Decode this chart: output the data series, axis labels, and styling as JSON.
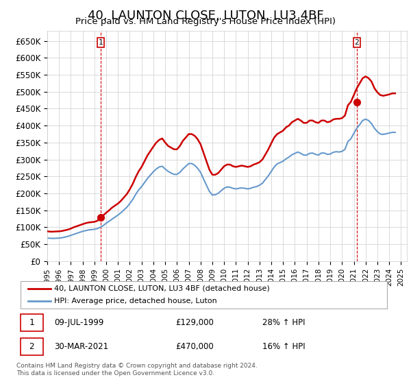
{
  "title": "40, LAUNTON CLOSE, LUTON, LU3 4BF",
  "subtitle": "Price paid vs. HM Land Registry's House Price Index (HPI)",
  "title_fontsize": 13,
  "subtitle_fontsize": 11,
  "ylabel_ticks": [
    "£0",
    "£50K",
    "£100K",
    "£150K",
    "£200K",
    "£250K",
    "£300K",
    "£350K",
    "£400K",
    "£450K",
    "£500K",
    "£550K",
    "£600K",
    "£650K"
  ],
  "ytick_values": [
    0,
    50000,
    100000,
    150000,
    200000,
    250000,
    300000,
    350000,
    400000,
    450000,
    500000,
    550000,
    600000,
    650000
  ],
  "ylim": [
    0,
    680000
  ],
  "xlim_start": 1995.0,
  "xlim_end": 2025.5,
  "red_line_color": "#cc0000",
  "blue_line_color": "#6699cc",
  "marker_color": "#cc0000",
  "vline_color": "#cc0000",
  "transaction1": {
    "label": "1",
    "date": "09-JUL-1999",
    "price": 129000,
    "year": 1999.53,
    "pct": "28%",
    "dir": "↑"
  },
  "transaction2": {
    "label": "2",
    "date": "30-MAR-2021",
    "price": 470000,
    "year": 2021.25,
    "pct": "16%",
    "dir": "↑"
  },
  "legend_line1": "40, LAUNTON CLOSE, LUTON, LU3 4BF (detached house)",
  "legend_line2": "HPI: Average price, detached house, Luton",
  "footnote1": "Contains HM Land Registry data © Crown copyright and database right 2024.",
  "footnote2": "This data is licensed under the Open Government Licence v3.0.",
  "hpi_red_data": {
    "years": [
      1995.0,
      1995.25,
      1995.5,
      1995.75,
      1996.0,
      1996.25,
      1996.5,
      1996.75,
      1997.0,
      1997.25,
      1997.5,
      1997.75,
      1998.0,
      1998.25,
      1998.5,
      1998.75,
      1999.0,
      1999.25,
      1999.5,
      1999.75,
      2000.0,
      2000.25,
      2000.5,
      2000.75,
      2001.0,
      2001.25,
      2001.5,
      2001.75,
      2002.0,
      2002.25,
      2002.5,
      2002.75,
      2003.0,
      2003.25,
      2003.5,
      2003.75,
      2004.0,
      2004.25,
      2004.5,
      2004.75,
      2005.0,
      2005.25,
      2005.5,
      2005.75,
      2006.0,
      2006.25,
      2006.5,
      2006.75,
      2007.0,
      2007.25,
      2007.5,
      2007.75,
      2008.0,
      2008.25,
      2008.5,
      2008.75,
      2009.0,
      2009.25,
      2009.5,
      2009.75,
      2010.0,
      2010.25,
      2010.5,
      2010.75,
      2011.0,
      2011.25,
      2011.5,
      2011.75,
      2012.0,
      2012.25,
      2012.5,
      2012.75,
      2013.0,
      2013.25,
      2013.5,
      2013.75,
      2014.0,
      2014.25,
      2014.5,
      2014.75,
      2015.0,
      2015.25,
      2015.5,
      2015.75,
      2016.0,
      2016.25,
      2016.5,
      2016.75,
      2017.0,
      2017.25,
      2017.5,
      2017.75,
      2018.0,
      2018.25,
      2018.5,
      2018.75,
      2019.0,
      2019.25,
      2019.5,
      2019.75,
      2020.0,
      2020.25,
      2020.5,
      2020.75,
      2021.0,
      2021.25,
      2021.5,
      2021.75,
      2022.0,
      2022.25,
      2022.5,
      2022.75,
      2023.0,
      2023.25,
      2023.5,
      2023.75,
      2024.0,
      2024.25,
      2024.5
    ],
    "values": [
      88000,
      87000,
      87000,
      87500,
      88000,
      89000,
      91000,
      93000,
      96000,
      100000,
      103000,
      106000,
      109000,
      112000,
      114000,
      115000,
      116000,
      119000,
      129000,
      135000,
      143000,
      150000,
      158000,
      164000,
      170000,
      178000,
      188000,
      198000,
      212000,
      228000,
      248000,
      265000,
      278000,
      295000,
      312000,
      325000,
      338000,
      350000,
      358000,
      362000,
      350000,
      340000,
      335000,
      330000,
      330000,
      340000,
      355000,
      365000,
      375000,
      375000,
      370000,
      360000,
      345000,
      320000,
      295000,
      270000,
      255000,
      255000,
      260000,
      270000,
      280000,
      285000,
      285000,
      280000,
      278000,
      280000,
      282000,
      280000,
      278000,
      280000,
      285000,
      288000,
      292000,
      300000,
      315000,
      330000,
      348000,
      365000,
      375000,
      380000,
      385000,
      395000,
      400000,
      410000,
      415000,
      420000,
      415000,
      408000,
      408000,
      415000,
      415000,
      410000,
      408000,
      415000,
      415000,
      410000,
      412000,
      418000,
      420000,
      420000,
      422000,
      430000,
      460000,
      470000,
      490000,
      510000,
      525000,
      540000,
      545000,
      540000,
      530000,
      510000,
      498000,
      490000,
      488000,
      490000,
      492000,
      495000,
      495000
    ]
  },
  "hpi_blue_data": {
    "years": [
      1995.0,
      1995.25,
      1995.5,
      1995.75,
      1996.0,
      1996.25,
      1996.5,
      1996.75,
      1997.0,
      1997.25,
      1997.5,
      1997.75,
      1998.0,
      1998.25,
      1998.5,
      1998.75,
      1999.0,
      1999.25,
      1999.5,
      1999.75,
      2000.0,
      2000.25,
      2000.5,
      2000.75,
      2001.0,
      2001.25,
      2001.5,
      2001.75,
      2002.0,
      2002.25,
      2002.5,
      2002.75,
      2003.0,
      2003.25,
      2003.5,
      2003.75,
      2004.0,
      2004.25,
      2004.5,
      2004.75,
      2005.0,
      2005.25,
      2005.5,
      2005.75,
      2006.0,
      2006.25,
      2006.5,
      2006.75,
      2007.0,
      2007.25,
      2007.5,
      2007.75,
      2008.0,
      2008.25,
      2008.5,
      2008.75,
      2009.0,
      2009.25,
      2009.5,
      2009.75,
      2010.0,
      2010.25,
      2010.5,
      2010.75,
      2011.0,
      2011.25,
      2011.5,
      2011.75,
      2012.0,
      2012.25,
      2012.5,
      2012.75,
      2013.0,
      2013.25,
      2013.5,
      2013.75,
      2014.0,
      2014.25,
      2014.5,
      2014.75,
      2015.0,
      2015.25,
      2015.5,
      2015.75,
      2016.0,
      2016.25,
      2016.5,
      2016.75,
      2017.0,
      2017.25,
      2017.5,
      2017.75,
      2018.0,
      2018.25,
      2018.5,
      2018.75,
      2019.0,
      2019.25,
      2019.5,
      2019.75,
      2020.0,
      2020.25,
      2020.5,
      2020.75,
      2021.0,
      2021.25,
      2021.5,
      2021.75,
      2022.0,
      2022.25,
      2022.5,
      2022.75,
      2023.0,
      2023.25,
      2023.5,
      2023.75,
      2024.0,
      2024.25,
      2024.5
    ],
    "values": [
      68000,
      67500,
      67000,
      67500,
      68000,
      69000,
      71000,
      73000,
      76000,
      79000,
      82000,
      85000,
      88000,
      90000,
      92000,
      93000,
      94000,
      96000,
      100000,
      105000,
      112000,
      118000,
      124000,
      130000,
      136000,
      143000,
      151000,
      159000,
      170000,
      182000,
      197000,
      210000,
      220000,
      232000,
      244000,
      254000,
      264000,
      272000,
      278000,
      280000,
      272000,
      265000,
      260000,
      256000,
      256000,
      262000,
      272000,
      280000,
      288000,
      288000,
      283000,
      274000,
      262000,
      243000,
      224000,
      206000,
      195000,
      196000,
      200000,
      208000,
      215000,
      219000,
      218000,
      215000,
      213000,
      215000,
      216000,
      215000,
      213000,
      215000,
      218000,
      220000,
      224000,
      230000,
      241000,
      252000,
      265000,
      278000,
      287000,
      291000,
      295000,
      302000,
      307000,
      314000,
      318000,
      322000,
      318000,
      313000,
      313000,
      318000,
      319000,
      315000,
      313000,
      319000,
      319000,
      315000,
      316000,
      321000,
      323000,
      322000,
      324000,
      330000,
      353000,
      361000,
      377000,
      392000,
      403000,
      415000,
      419000,
      415000,
      406000,
      392000,
      382000,
      375000,
      374000,
      376000,
      378000,
      380000,
      380000
    ]
  }
}
